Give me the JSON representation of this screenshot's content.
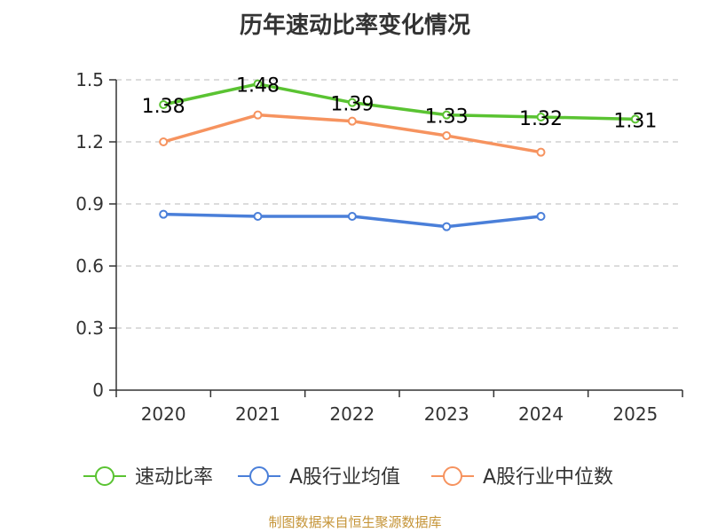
{
  "chart_data": {
    "type": "line",
    "title": "历年速动比率变化情况",
    "categories": [
      "2020",
      "2021",
      "2022",
      "2023",
      "2024",
      "2025"
    ],
    "ylim": [
      0,
      1.5
    ],
    "yticks": [
      "0",
      "0.3",
      "0.6",
      "0.9",
      "1.2",
      "1.5"
    ],
    "ytick_values": [
      0,
      0.3,
      0.6,
      0.9,
      1.2,
      1.5
    ],
    "grid": true,
    "legend_position": "bottom",
    "series": [
      {
        "name": "速动比率",
        "color": "#5ac332",
        "values": [
          1.38,
          1.48,
          1.39,
          1.33,
          1.32,
          1.31
        ],
        "labels": [
          "1.38",
          "1.48",
          "1.39",
          "1.33",
          "1.32",
          "1.31"
        ]
      },
      {
        "name": "A股行业均值",
        "color": "#4a7fd9",
        "values": [
          0.85,
          0.84,
          0.84,
          0.79,
          0.84,
          null
        ]
      },
      {
        "name": "A股行业中位数",
        "color": "#f6935f",
        "values": [
          1.2,
          1.33,
          1.3,
          1.23,
          1.15,
          null
        ]
      }
    ]
  },
  "source_note": "制图数据来自恒生聚源数据库"
}
